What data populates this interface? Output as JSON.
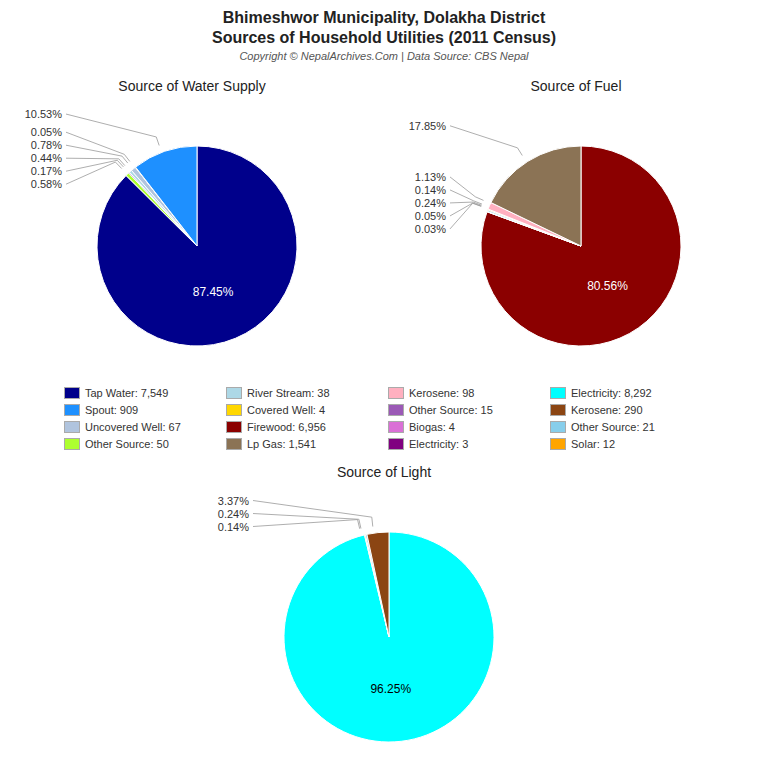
{
  "title": "Bhimeshwor Municipality, Dolakha District",
  "subtitle": "Sources of Household Utilities (2011 Census)",
  "annotations": [
    "Copyright © NepalArchives.Com | Data Source: CBS Nepal"
  ],
  "series": [
    {
      "name": "Tap Water: 7,549",
      "color": "#00008B"
    },
    {
      "name": "Spout: 909",
      "color": "#1E90FF"
    },
    {
      "name": "Uncovered Well: 67",
      "color": "#B0C4DE"
    },
    {
      "name": "Other Source: 50",
      "color": "#ADFF2F"
    },
    {
      "name": "River Stream: 38",
      "color": "#ADD8E6"
    },
    {
      "name": "Covered Well: 4",
      "color": "#FFD700"
    },
    {
      "name": "Firewood: 6,956",
      "color": "#8B0000"
    },
    {
      "name": "Lp Gas: 1,541",
      "color": "#8B7355"
    },
    {
      "name": "Kerosene: 98",
      "color": "#FFB0C0"
    },
    {
      "name": "Other Source: 15",
      "color": "#9B59B6"
    },
    {
      "name": "Biogas: 4",
      "color": "#DA70D6"
    },
    {
      "name": "Electricity: 3",
      "color": "#800080"
    },
    {
      "name": "Electricity: 8,292",
      "color": "#00FFFF"
    },
    {
      "name": "Kerosene: 290",
      "color": "#8B4513"
    },
    {
      "name": "Other Source: 21",
      "color": "#87CEEB"
    },
    {
      "name": "Solar: 12",
      "color": "#FFA500"
    }
  ],
  "chart_data": [
    {
      "type": "pie",
      "title": "Source of Water Supply",
      "values": [
        87.45,
        0.58,
        0.17,
        0.44,
        0.78,
        0.05,
        10.53
      ],
      "value_labels": [
        "87.45%",
        "0.58%",
        "0.17%",
        "0.44%",
        "0.78%",
        "0.05%",
        "10.53%"
      ],
      "colors": [
        "#00008B",
        "#ADFF2F",
        "#9B59B6",
        "#ADD8E6",
        "#B0C4DE",
        "#FFD700",
        "#1E90FF"
      ],
      "data_labels": true
    },
    {
      "type": "pie",
      "title": "Source of Fuel",
      "values": [
        80.56,
        0.03,
        0.05,
        0.24,
        0.14,
        1.13,
        17.85
      ],
      "value_labels": [
        "80.56%",
        "0.03%",
        "0.05%",
        "0.24%",
        "0.14%",
        "1.13%",
        "17.85%"
      ],
      "colors": [
        "#8B0000",
        "#800080",
        "#DA70D6",
        "#87CEEB",
        "#FFA500",
        "#FFB0C0",
        "#8B7355"
      ],
      "data_labels": true
    },
    {
      "type": "pie",
      "title": "Source of Light",
      "values": [
        96.25,
        0.14,
        0.24,
        3.37
      ],
      "value_labels": [
        "96.25%",
        "0.14%",
        "0.24%",
        "3.37%"
      ],
      "colors": [
        "#00FFFF",
        "#FFA500",
        "#87CEEB",
        "#8B4513"
      ],
      "data_labels": true
    }
  ]
}
